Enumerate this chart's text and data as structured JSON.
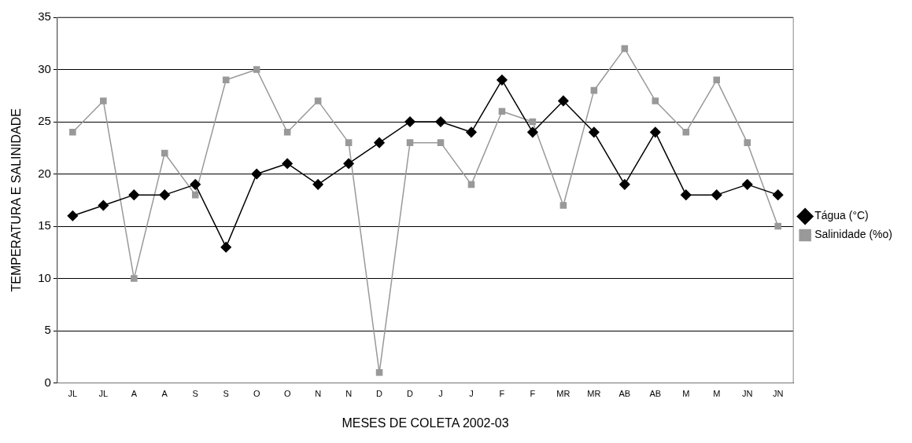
{
  "chart_data": {
    "type": "line",
    "xlabel": "MESES DE COLETA 2002-03",
    "ylabel": "TEMPERATURA E SALINIDADE",
    "categories": [
      "JL",
      "JL",
      "A",
      "A",
      "S",
      "S",
      "O",
      "O",
      "N",
      "N",
      "D",
      "D",
      "J",
      "J",
      "F",
      "F",
      "MR",
      "MR",
      "AB",
      "AB",
      "M",
      "M",
      "JN",
      "JN"
    ],
    "series": [
      {
        "name": "Tágua (°C)",
        "color": "#000000",
        "marker": "diamond",
        "values": [
          16,
          17,
          18,
          18,
          19,
          13,
          20,
          21,
          19,
          21,
          23,
          25,
          25,
          24,
          29,
          24,
          27,
          24,
          19,
          24,
          18,
          18,
          19,
          18
        ]
      },
      {
        "name": "Salinidade (%o)",
        "color": "#999999",
        "marker": "square",
        "values": [
          24,
          27,
          10,
          22,
          18,
          29,
          30,
          24,
          27,
          23,
          1,
          23,
          23,
          19,
          26,
          25,
          17,
          28,
          32,
          27,
          24,
          29,
          23,
          15
        ]
      }
    ],
    "ylim": [
      0,
      35
    ],
    "yticks": [
      0,
      5,
      10,
      15,
      20,
      25,
      30,
      35
    ],
    "grid": "y",
    "legend": "right",
    "line_style": "solid"
  }
}
